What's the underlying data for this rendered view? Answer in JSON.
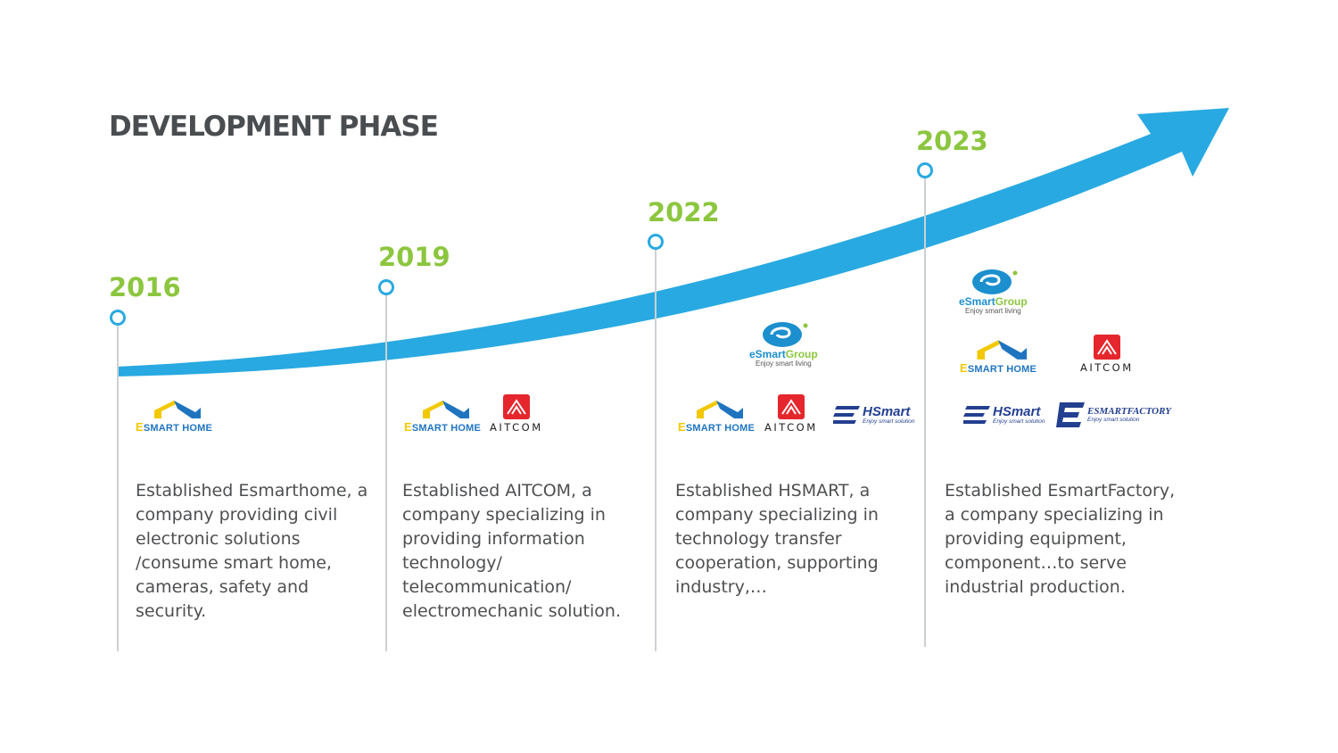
{
  "title": "DEVELOPMENT PHASE",
  "colors": {
    "arrow": "#29a9e1",
    "year": "#8cc63f",
    "title": "#4a4d50",
    "line": "#cdd0d3"
  },
  "milestones": [
    {
      "year": "2016",
      "description": "Established Esmarthome, a company providing civil electronic solutions /consume smart home, cameras, safety and security."
    },
    {
      "year": "2019",
      "description": "Established AITCOM, a company specializing in providing information technology/ telecommunication/ electromechanic solution."
    },
    {
      "year": "2022",
      "description": "Established HSMART, a company specializing in technology transfer cooperation, supporting industry,…"
    },
    {
      "year": "2023",
      "description": "Established EsmartFactory, a company specializing in providing equipment, component…to serve industrial production."
    }
  ],
  "logos": {
    "esmarthome": {
      "e": "E",
      "rest": "SMART HOME"
    },
    "aitcom": "AITCOM",
    "hsmart": {
      "name": "HSmart",
      "tagline": "Enjoy smart solution"
    },
    "esmartfactory": {
      "name": "ESMARTFACTORY",
      "tagline": "Enjoy smart solution"
    },
    "esmartgroup": {
      "name_a": "eSmart",
      "name_b": "Group",
      "tagline": "Enjoy smart living"
    }
  }
}
